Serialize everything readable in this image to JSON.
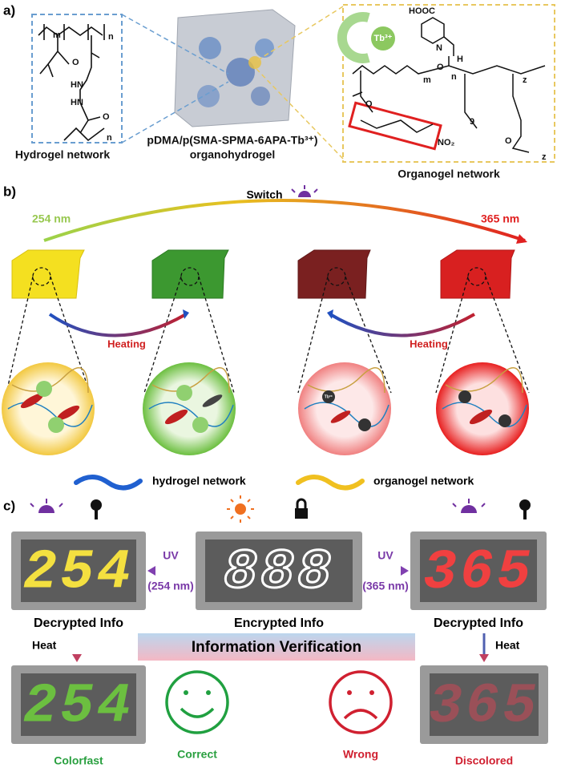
{
  "panel_a": {
    "label": "a)",
    "hydrogel_structure": {
      "labels": [
        "m",
        "n",
        "O",
        "HN",
        "HN",
        "O",
        "n"
      ]
    },
    "hydrogel_caption": "Hydrogel network",
    "center_caption": [
      "pDMA/p(SMA-SPMA-6APA-Tb³⁺)",
      "organohydrogel"
    ],
    "organogel_structure": {
      "labels": [
        "HOOC",
        "Tb³⁺",
        "N",
        "H",
        "O",
        "m",
        "n",
        "z",
        "O",
        "9",
        "NO₂",
        "O",
        "z"
      ]
    },
    "organogel_caption": "Organogel network"
  },
  "panel_b": {
    "label": "b)",
    "switch": "Switch",
    "left_wavelength": "254 nm",
    "right_wavelength": "365 nm",
    "heating": [
      "Heating",
      "Heating"
    ],
    "ion_label": "Tb³⁺",
    "legend": [
      "hydrogel network",
      "organogel network"
    ]
  },
  "panel_c": {
    "label": "c)",
    "displays_top": [
      "254",
      "888",
      "365"
    ],
    "arrows": [
      {
        "top": "UV",
        "bottom": "(254 nm)"
      },
      {
        "top": "UV",
        "bottom": "(365 nm)"
      }
    ],
    "captions_top": [
      "Decrypted Info",
      "Encrypted Info",
      "Decrypted Info"
    ],
    "heat": [
      "Heat",
      "Heat"
    ],
    "banner": "Information Verification",
    "displays_bottom": [
      "254",
      "365"
    ],
    "captions_bottom": [
      "Colorfast",
      "Correct",
      "Wrong",
      "Discolored"
    ]
  }
}
